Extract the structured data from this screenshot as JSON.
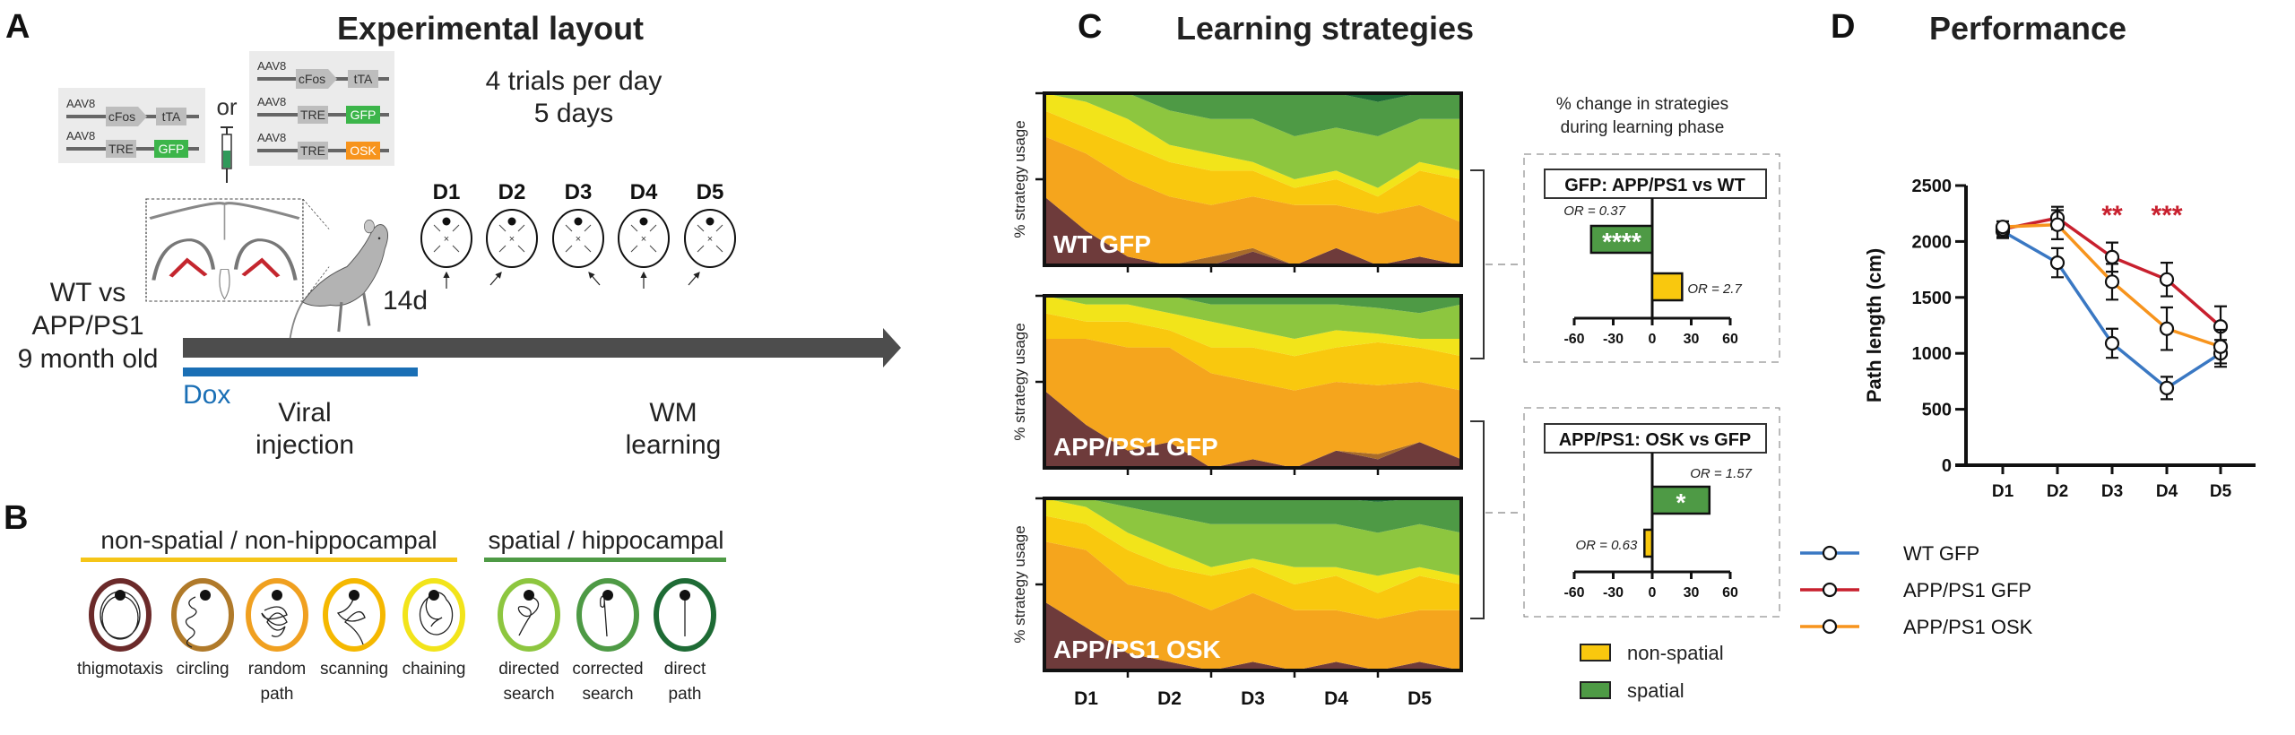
{
  "panel_a": {
    "letter": "A",
    "title": "Experimental layout",
    "construct_set_1": [
      {
        "vector": "AAV8",
        "promoter": "cFos",
        "gene": "tTA"
      },
      {
        "vector": "AAV8",
        "promoter": "TRE",
        "gene": "GFP"
      }
    ],
    "or_label": "or",
    "construct_set_2": [
      {
        "vector": "AAV8",
        "promoter": "cFos",
        "gene": "tTA"
      },
      {
        "vector": "AAV8",
        "promoter": "TRE",
        "gene": "GFP"
      },
      {
        "vector": "AAV8",
        "promoter": "TRE",
        "gene": "OSK"
      }
    ],
    "trials_line1": "4 trials per day",
    "trials_line2": "5 days",
    "days": [
      "D1",
      "D2",
      "D3",
      "D4",
      "D5"
    ],
    "interval_label": "14d",
    "group_line1": "WT vs",
    "group_line2": "APP/PS1",
    "group_line3": "9 month old",
    "dox_label": "Dox",
    "viral_line1": "Viral",
    "viral_line2": "injection",
    "wm_line1": "WM",
    "wm_line2": "learning",
    "colors": {
      "dox": "#1a6fb5",
      "gfp": "#3cb54a",
      "osk": "#f7941d",
      "timeline": "#4d4d4d"
    }
  },
  "panel_b": {
    "letter": "B",
    "non_spatial_header": "non-spatial / non-hippocampal",
    "spatial_header": "spatial / hippocampal",
    "strategies": [
      {
        "line1": "thigmotaxis",
        "line2": "",
        "color": "#6b2a2a"
      },
      {
        "line1": "circling",
        "line2": "",
        "color": "#b07a2a"
      },
      {
        "line1": "random",
        "line2": "path",
        "color": "#f0a020"
      },
      {
        "line1": "scanning",
        "line2": "",
        "color": "#f5b800"
      },
      {
        "line1": "chaining",
        "line2": "",
        "color": "#f2e41a"
      },
      {
        "line1": "directed",
        "line2": "search",
        "color": "#8dc63f"
      },
      {
        "line1": "corrected",
        "line2": "search",
        "color": "#4e9a45"
      },
      {
        "line1": "direct",
        "line2": "path",
        "color": "#1e6b35"
      }
    ]
  },
  "panel_c": {
    "letter": "C",
    "title": "Learning strategies",
    "y_label": "% strategy usage",
    "x_labels": [
      "D1",
      "D2",
      "D3",
      "D4",
      "D5"
    ],
    "change_title_line1": "% change in strategies",
    "change_title_line2": "during learning phase",
    "legend": [
      {
        "label": "non-spatial",
        "color": "#f9c80e"
      },
      {
        "label": "spatial",
        "color": "#4e9a45"
      }
    ]
  },
  "panel_d": {
    "letter": "D",
    "title": "Performance"
  },
  "chart_data": [
    {
      "type": "area",
      "title": "WT GFP",
      "stacked": true,
      "ylabel": "% strategy usage",
      "ylim": [
        0,
        100
      ],
      "strategy_order": [
        "thigmotaxis",
        "circling",
        "random path",
        "scanning",
        "chaining",
        "directed search",
        "corrected search",
        "direct path"
      ],
      "colors": [
        "#6e3b3b",
        "#a86b2a",
        "#f5a51d",
        "#f9c80e",
        "#f2e41a",
        "#8dc63f",
        "#4e9a45",
        "#1e6b35"
      ],
      "rows": [
        [
          40,
          0,
          35,
          15,
          10,
          0,
          0,
          0
        ],
        [
          20,
          0,
          45,
          15,
          15,
          5,
          0,
          0
        ],
        [
          5,
          0,
          45,
          20,
          15,
          15,
          0,
          0
        ],
        [
          0,
          0,
          40,
          20,
          10,
          20,
          10,
          0
        ],
        [
          0,
          5,
          30,
          20,
          10,
          20,
          15,
          0
        ],
        [
          8,
          2,
          30,
          15,
          5,
          25,
          15,
          0
        ],
        [
          0,
          0,
          35,
          10,
          5,
          25,
          25,
          0
        ],
        [
          10,
          0,
          25,
          15,
          5,
          25,
          20,
          0
        ],
        [
          0,
          0,
          30,
          10,
          5,
          30,
          20,
          5
        ],
        [
          5,
          0,
          30,
          20,
          5,
          25,
          15,
          0
        ],
        [
          0,
          0,
          25,
          25,
          5,
          30,
          15,
          0
        ]
      ]
    },
    {
      "type": "area",
      "title": "APP/PS1 GFP",
      "stacked": true,
      "ylabel": "% strategy usage",
      "ylim": [
        0,
        100
      ],
      "rows": [
        [
          45,
          0,
          30,
          15,
          10,
          0,
          0,
          0
        ],
        [
          25,
          0,
          50,
          10,
          10,
          5,
          0,
          0
        ],
        [
          10,
          0,
          60,
          15,
          10,
          5,
          0,
          0
        ],
        [
          15,
          0,
          55,
          10,
          10,
          10,
          0,
          0
        ],
        [
          0,
          0,
          55,
          15,
          15,
          10,
          5,
          0
        ],
        [
          5,
          0,
          45,
          20,
          10,
          15,
          5,
          0
        ],
        [
          0,
          0,
          45,
          20,
          10,
          20,
          5,
          0
        ],
        [
          10,
          0,
          40,
          20,
          10,
          15,
          5,
          0
        ],
        [
          5,
          3,
          40,
          25,
          5,
          15,
          7,
          0
        ],
        [
          15,
          0,
          35,
          20,
          5,
          15,
          10,
          0
        ],
        [
          5,
          0,
          40,
          20,
          10,
          20,
          5,
          0
        ]
      ]
    },
    {
      "type": "area",
      "title": "APP/PS1 OSK",
      "stacked": true,
      "ylabel": "% strategy usage",
      "ylim": [
        0,
        100
      ],
      "rows": [
        [
          40,
          0,
          35,
          15,
          10,
          0,
          0,
          0
        ],
        [
          25,
          0,
          45,
          15,
          10,
          5,
          0,
          0
        ],
        [
          10,
          0,
          40,
          20,
          10,
          15,
          5,
          0
        ],
        [
          5,
          0,
          40,
          15,
          10,
          20,
          10,
          0
        ],
        [
          0,
          0,
          35,
          20,
          5,
          25,
          15,
          0
        ],
        [
          5,
          0,
          40,
          15,
          5,
          20,
          15,
          0
        ],
        [
          0,
          0,
          35,
          15,
          10,
          25,
          15,
          0
        ],
        [
          5,
          0,
          30,
          20,
          5,
          25,
          15,
          0
        ],
        [
          0,
          0,
          30,
          15,
          10,
          25,
          18,
          2
        ],
        [
          5,
          0,
          30,
          20,
          5,
          25,
          15,
          0
        ],
        [
          0,
          0,
          35,
          15,
          5,
          25,
          20,
          0
        ]
      ]
    },
    {
      "type": "bar",
      "orientation": "horizontal",
      "title": "GFP: APP/PS1 vs WT",
      "xlim": [
        -60,
        60
      ],
      "xticks": [
        "-60",
        "-30",
        "0",
        "30",
        "60"
      ],
      "bars": [
        {
          "category": "spatial",
          "value": -47,
          "color": "#4e9a45",
          "or_label": "OR = 0.37",
          "sig": "****"
        },
        {
          "category": "non-spatial",
          "value": 23,
          "color": "#f9c80e",
          "or_label": "OR = 2.7",
          "sig": ""
        }
      ]
    },
    {
      "type": "bar",
      "orientation": "horizontal",
      "title": "APP/PS1: OSK vs GFP",
      "xlim": [
        -60,
        60
      ],
      "xticks": [
        "-60",
        "-30",
        "0",
        "30",
        "60"
      ],
      "bars": [
        {
          "category": "spatial",
          "value": 44,
          "color": "#4e9a45",
          "or_label": "OR = 1.57",
          "sig": "*"
        },
        {
          "category": "non-spatial",
          "value": -6,
          "color": "#f9c80e",
          "or_label": "OR = 0.63",
          "sig": ""
        }
      ]
    },
    {
      "type": "line",
      "title": "Performance",
      "xlabel": "",
      "ylabel": "Path length (cm)",
      "categories": [
        "D1",
        "D2",
        "D3",
        "D4",
        "D5"
      ],
      "ylim": [
        0,
        2500
      ],
      "yticks": [
        "0",
        "500",
        "1000",
        "1500",
        "2000",
        "2500"
      ],
      "series": [
        {
          "name": "WT GFP",
          "color": "#3a78c3",
          "values": [
            2090,
            1810,
            1090,
            690,
            1000
          ],
          "sem": [
            60,
            130,
            130,
            100,
            120
          ]
        },
        {
          "name": "APP/PS1 GFP",
          "color": "#c8202e",
          "values": [
            2110,
            2210,
            1860,
            1660,
            1240
          ],
          "sem": [
            70,
            100,
            130,
            150,
            180
          ]
        },
        {
          "name": "APP/PS1 OSK",
          "color": "#f7941d",
          "values": [
            2130,
            2150,
            1640,
            1220,
            1060
          ],
          "sem": [
            50,
            130,
            160,
            190,
            150
          ]
        }
      ],
      "annotations": [
        {
          "category": "D3",
          "text": "**",
          "color": "#c8202e"
        },
        {
          "category": "D4",
          "text": "***",
          "color": "#c8202e"
        }
      ]
    }
  ]
}
